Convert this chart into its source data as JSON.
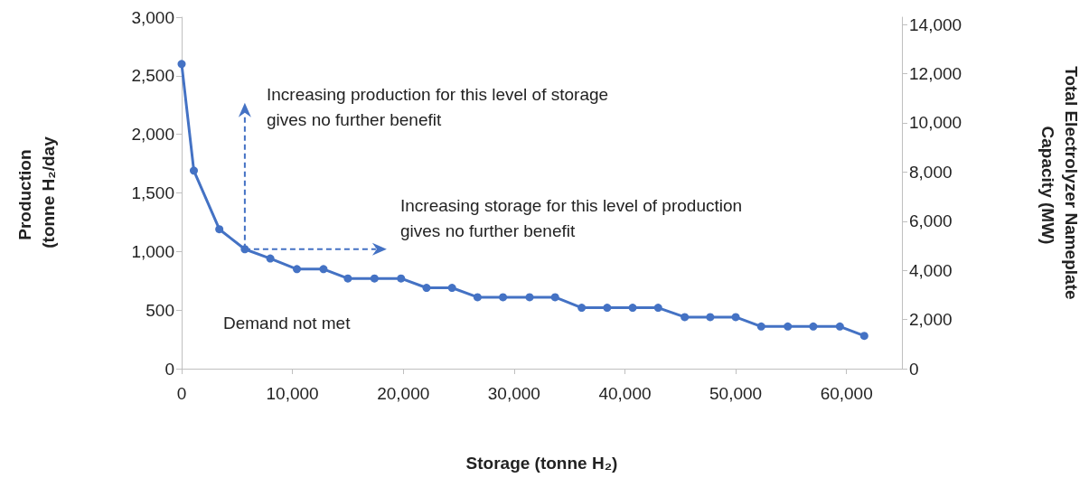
{
  "chart_data": {
    "type": "line",
    "xlabel": "Storage (tonne H₂)",
    "ylabel": "Production (tonne H₂/day",
    "y2label": "Total Electrolyzer Nameplate Capacity (MW)",
    "x": [
      0,
      1100,
      3400,
      5700,
      8000,
      10400,
      12800,
      15000,
      17400,
      19800,
      22100,
      24400,
      26700,
      29000,
      31400,
      33700,
      36100,
      38400,
      40700,
      43000,
      45400,
      47700,
      50000,
      52300,
      54700,
      57000,
      59400,
      61600
    ],
    "series": [
      {
        "color": "#4472c4",
        "values": [
          2600,
          1690,
          1190,
          1020,
          940,
          850,
          850,
          770,
          770,
          770,
          690,
          690,
          610,
          610,
          610,
          610,
          520,
          520,
          520,
          520,
          440,
          440,
          440,
          360,
          360,
          360,
          360,
          280
        ]
      }
    ],
    "xlim": [
      0,
      65000
    ],
    "xticks": [
      0,
      {
        "value": 10000,
        "label": "10,000"
      },
      {
        "value": 20000,
        "label": "20,000"
      },
      {
        "value": 30000,
        "label": "30,000"
      },
      {
        "value": 40000,
        "label": "40,000"
      },
      {
        "value": 50000,
        "label": "50,000"
      },
      {
        "value": 60000,
        "label": "60,000"
      }
    ],
    "ylim": [
      0,
      3000
    ],
    "yticks": [
      0,
      500,
      {
        "value": 1000,
        "label": "1,000"
      },
      {
        "value": 1500,
        "label": "1,500"
      },
      {
        "value": 2000,
        "label": "2,000"
      },
      {
        "value": 2500,
        "label": "2,500"
      },
      {
        "value": 3000,
        "label": "3,000"
      }
    ],
    "y2lim": [
      0,
      14300
    ],
    "y2ticks": [
      0,
      {
        "value": 2000,
        "label": "2,000"
      },
      {
        "value": 4000,
        "label": "4,000"
      },
      {
        "value": 6000,
        "label": "6,000"
      },
      {
        "value": 8000,
        "label": "8,000"
      },
      {
        "value": 10000,
        "label": "10,000"
      },
      {
        "value": 12000,
        "label": "12,000"
      },
      {
        "value": 14000,
        "label": "14,000"
      }
    ],
    "annotations": [
      {
        "text": "Increasing production for this level of storage gives no further benefit",
        "x": 5700,
        "y": 1020
      },
      "Increasing storage for this level of production gives no further benefit",
      "Demand not met"
    ],
    "marker": "circle",
    "line_style": "solid",
    "grid": false
  }
}
